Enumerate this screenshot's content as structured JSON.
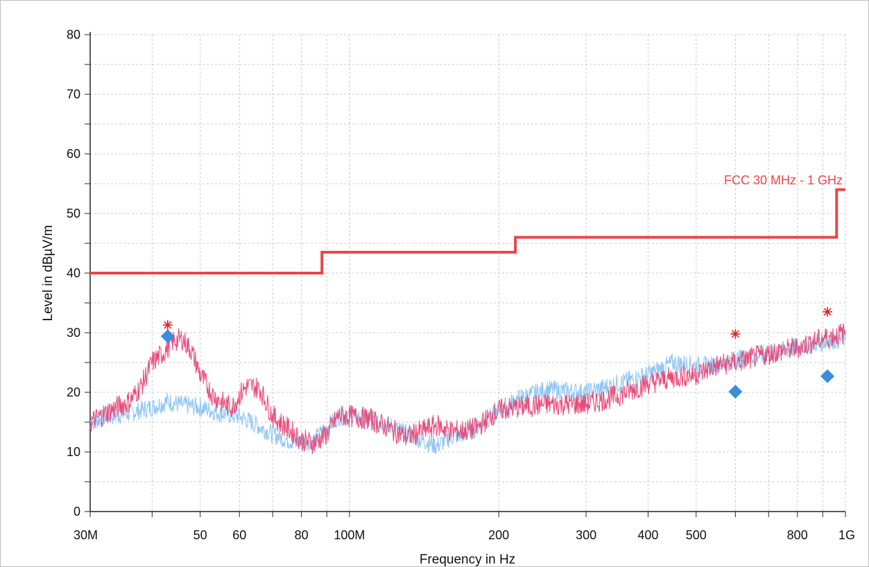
{
  "chart_data": {
    "type": "line",
    "xscale": "log",
    "xlabel": "Frequency in Hz",
    "ylabel": "Level in dBµV/m",
    "xlim": [
      30000000,
      1000000000
    ],
    "ylim": [
      0,
      80
    ],
    "grid": true,
    "x_ticks": [
      {
        "value": 30000000,
        "label": "30M"
      },
      {
        "value": 50000000,
        "label": "50"
      },
      {
        "value": 60000000,
        "label": "60"
      },
      {
        "value": 80000000,
        "label": "80"
      },
      {
        "value": 100000000,
        "label": "100M"
      },
      {
        "value": 200000000,
        "label": "200"
      },
      {
        "value": 300000000,
        "label": "300"
      },
      {
        "value": 400000000,
        "label": "400"
      },
      {
        "value": 500000000,
        "label": "500"
      },
      {
        "value": 800000000,
        "label": "800"
      },
      {
        "value": 1000000000,
        "label": "1G"
      }
    ],
    "y_ticks": [
      0,
      10,
      20,
      30,
      40,
      50,
      60,
      70,
      80
    ],
    "limit_line": {
      "name": "FCC 30 MHz - 1 GHz",
      "color": "#e8464b",
      "x": [
        30000000,
        88000000,
        88000000,
        216000000,
        216000000,
        960000000,
        960000000,
        1000000000
      ],
      "y": [
        40,
        40,
        43.5,
        43.5,
        46,
        46,
        54,
        54
      ]
    },
    "series": [
      {
        "color": "#8ec5f4",
        "x": [
          30000000,
          33000000,
          36000000,
          40000000,
          43000000,
          45000000,
          50000000,
          55000000,
          60000000,
          65000000,
          70000000,
          75000000,
          80000000,
          85000000,
          90000000,
          95000000,
          100000000,
          110000000,
          120000000,
          130000000,
          140000000,
          150000000,
          160000000,
          170000000,
          180000000,
          200000000,
          220000000,
          250000000,
          300000000,
          350000000,
          400000000,
          450000000,
          500000000,
          550000000,
          600000000,
          700000000,
          800000000,
          900000000,
          1000000000
        ],
        "y": [
          15,
          16,
          16.5,
          17.5,
          18.5,
          18,
          17.5,
          16.5,
          16,
          14.5,
          13,
          12,
          11.5,
          12,
          14,
          16,
          16,
          15.5,
          14.5,
          13,
          12,
          11,
          12.5,
          13,
          14,
          17,
          19,
          20.5,
          20,
          21.5,
          23,
          25,
          24.5,
          24.5,
          25.5,
          26.5,
          27.5,
          28.5,
          29
        ]
      },
      {
        "color": "#e94b7a",
        "x": [
          30000000,
          33000000,
          36000000,
          38000000,
          40000000,
          42000000,
          44000000,
          46000000,
          48000000,
          50000000,
          53000000,
          56000000,
          58000000,
          60000000,
          62000000,
          64000000,
          66000000,
          70000000,
          75000000,
          80000000,
          85000000,
          90000000,
          95000000,
          100000000,
          110000000,
          120000000,
          130000000,
          140000000,
          150000000,
          160000000,
          170000000,
          180000000,
          200000000,
          220000000,
          250000000,
          300000000,
          350000000,
          400000000,
          450000000,
          500000000,
          550000000,
          600000000,
          700000000,
          800000000,
          900000000,
          1000000000
        ],
        "y": [
          15,
          17,
          18.5,
          21,
          25,
          26.5,
          28.5,
          29,
          27,
          23,
          19.5,
          18,
          17.5,
          19.5,
          21,
          21,
          20.5,
          16,
          14,
          12,
          11.5,
          13,
          16,
          16,
          15.5,
          14,
          12.5,
          13.5,
          14.5,
          13.5,
          13.5,
          14,
          17,
          17.5,
          18,
          18,
          19.5,
          21.5,
          22.5,
          23,
          24.5,
          25,
          26.5,
          27.5,
          29,
          30
        ]
      }
    ],
    "peak_markers": {
      "symbol": "*",
      "color": "#e02020",
      "points": [
        {
          "x": 43000000,
          "y": 31.3
        },
        {
          "x": 600000000,
          "y": 29.8
        },
        {
          "x": 920000000,
          "y": 33.5
        }
      ]
    },
    "final_markers": {
      "symbol": "diamond",
      "color": "#3a8fd8",
      "points": [
        {
          "x": 43000000,
          "y": 29.4
        },
        {
          "x": 600000000,
          "y": 20.1
        },
        {
          "x": 920000000,
          "y": 22.7
        }
      ]
    }
  }
}
